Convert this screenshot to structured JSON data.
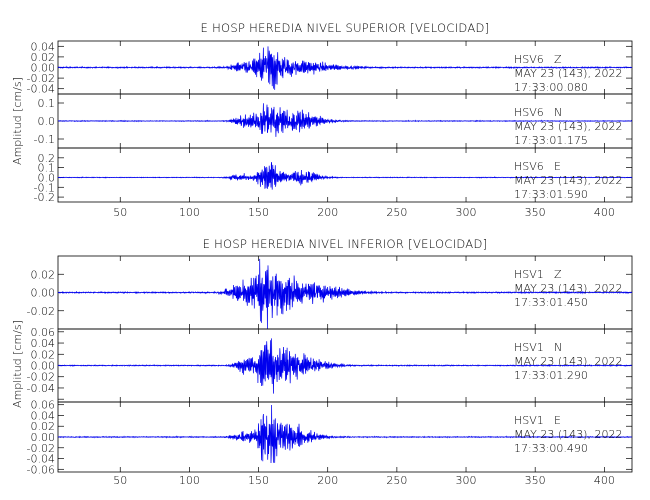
{
  "chart_data": [
    {
      "type": "line",
      "title": "E HOSP HEREDIA NIVEL SUPERIOR [VELOCIDAD]",
      "ylabel": "Amplitud [cm/s]",
      "xlim": [
        5,
        420
      ],
      "x_ticks": [
        50,
        100,
        150,
        200,
        250,
        300,
        350,
        400
      ],
      "channels": [
        {
          "station": "HSV6",
          "component": "Z",
          "date": "MAY 23 (143), 2022",
          "time": "17:33:00.080",
          "ylim": [
            -0.05,
            0.05
          ],
          "y_ticks": [
            -0.04,
            -0.02,
            0.0,
            0.02,
            0.04
          ],
          "y_tick_labels": [
            "-0.04",
            "-0.02",
            "0.00",
            "0.02",
            "0.04"
          ],
          "baseline": 0.0,
          "noise": 0.001,
          "bursts": [
            {
              "center": 155,
              "width": 9,
              "amp": 0.032
            },
            {
              "center": 140,
              "width": 14,
              "amp": 0.01
            },
            {
              "center": 175,
              "width": 22,
              "amp": 0.011
            }
          ]
        },
        {
          "station": "HSV6",
          "component": "N",
          "date": "MAY 23 (143), 2022",
          "time": "17:33:01.175",
          "ylim": [
            -0.15,
            0.15
          ],
          "y_ticks": [
            -0.1,
            0.0,
            0.1
          ],
          "y_tick_labels": [
            "-0.1",
            "0.0",
            "0.1"
          ],
          "baseline": 0.0,
          "noise": 0.002,
          "bursts": [
            {
              "center": 157,
              "width": 11,
              "amp": 0.085
            },
            {
              "center": 180,
              "width": 12,
              "amp": 0.045
            },
            {
              "center": 140,
              "width": 12,
              "amp": 0.03
            }
          ]
        },
        {
          "station": "HSV6",
          "component": "E",
          "date": "MAY 23 (143), 2022",
          "time": "17:33:01.590",
          "ylim": [
            -0.25,
            0.3
          ],
          "y_ticks": [
            -0.2,
            -0.1,
            0.0,
            0.1,
            0.2
          ],
          "y_tick_labels": [
            "-0.2",
            "-0.1",
            "0.0",
            "0.1",
            "0.2"
          ],
          "baseline": 0.0,
          "noise": 0.003,
          "bursts": [
            {
              "center": 155,
              "width": 8,
              "amp": 0.16
            },
            {
              "center": 180,
              "width": 10,
              "amp": 0.07
            },
            {
              "center": 135,
              "width": 10,
              "amp": 0.03
            }
          ]
        }
      ]
    },
    {
      "type": "line",
      "title": "E HOSP HEREDIA NIVEL INFERIOR [VELOCIDAD]",
      "ylabel": "Amplitud [cm/s]",
      "xlim": [
        5,
        420
      ],
      "x_ticks": [
        0,
        50,
        100,
        150,
        200,
        250,
        300,
        350,
        400
      ],
      "channels": [
        {
          "station": "HSV1",
          "component": "Z",
          "date": "MAY 23 (143), 2022",
          "time": "17:33:01.450",
          "ylim": [
            -0.04,
            0.04
          ],
          "y_ticks": [
            -0.02,
            0.0,
            0.02
          ],
          "y_tick_labels": [
            "-0.02",
            "0.00",
            "0.02"
          ],
          "baseline": 0.0,
          "noise": 0.0006,
          "bursts": [
            {
              "center": 155,
              "width": 12,
              "amp": 0.024
            },
            {
              "center": 137,
              "width": 14,
              "amp": 0.012
            },
            {
              "center": 180,
              "width": 22,
              "amp": 0.01
            }
          ]
        },
        {
          "station": "HSV1",
          "component": "N",
          "date": "MAY 23 (143), 2022",
          "time": "17:33:01.290",
          "ylim": [
            -0.065,
            0.065
          ],
          "y_ticks": [
            -0.06,
            -0.04,
            -0.02,
            0.0,
            0.02,
            0.04,
            0.06
          ],
          "y_tick_labels": [
            "",
            "-0.04",
            "-0.02",
            "0.00",
            "0.02",
            "0.04",
            "0.06"
          ],
          "baseline": 0.0,
          "noise": 0.0008,
          "bursts": [
            {
              "center": 155,
              "width": 9,
              "amp": 0.04
            },
            {
              "center": 175,
              "width": 16,
              "amp": 0.017
            },
            {
              "center": 140,
              "width": 12,
              "amp": 0.012
            }
          ]
        },
        {
          "station": "HSV1",
          "component": "E",
          "date": "MAY 23 (143), 2022",
          "time": "17:33:00.490",
          "ylim": [
            -0.065,
            0.065
          ],
          "y_ticks": [
            -0.06,
            -0.04,
            -0.02,
            0.0,
            0.02,
            0.04,
            0.06
          ],
          "y_tick_labels": [
            "-0.06",
            "-0.04",
            "-0.02",
            "0.00",
            "0.02",
            "0.04",
            "0.06"
          ],
          "baseline": 0.0,
          "noise": 0.0008,
          "bursts": [
            {
              "center": 155,
              "width": 7,
              "amp": 0.045
            },
            {
              "center": 170,
              "width": 14,
              "amp": 0.02
            },
            {
              "center": 140,
              "width": 12,
              "amp": 0.01
            }
          ]
        }
      ]
    }
  ],
  "colors": {
    "trace": "#0000ee",
    "axes": "#000000",
    "background": "#ffffff"
  }
}
